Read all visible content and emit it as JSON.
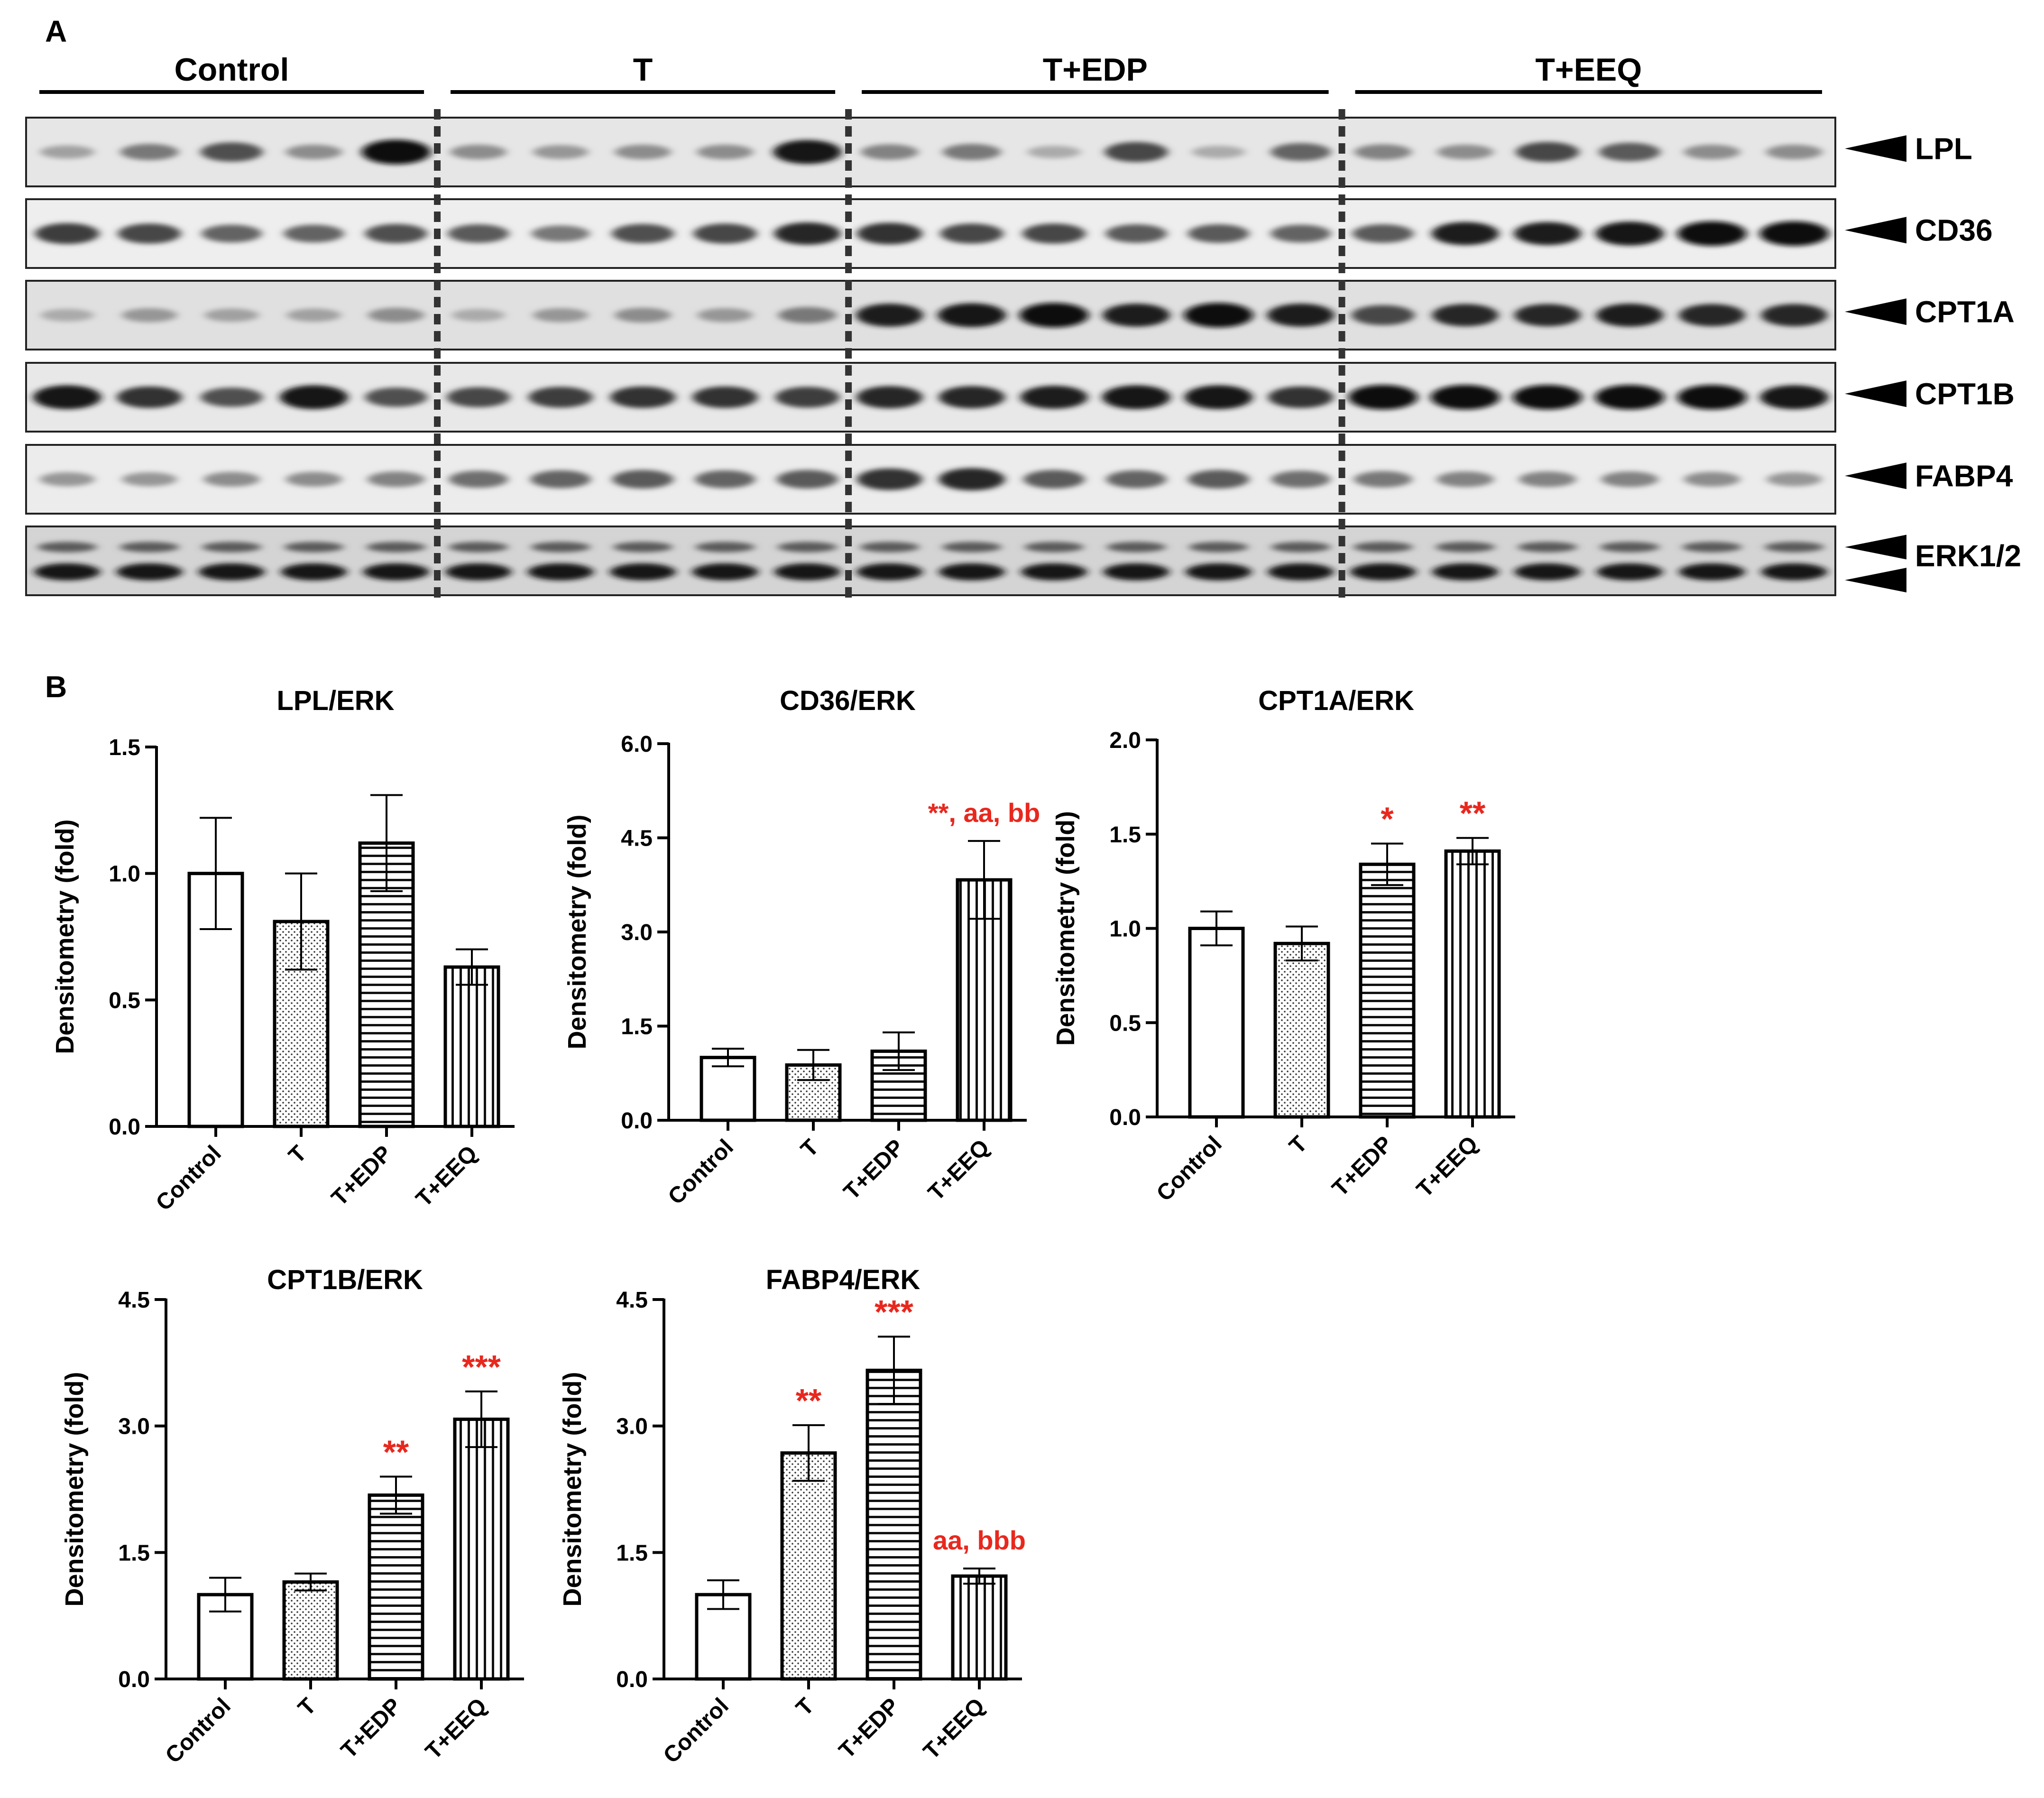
{
  "figure": {
    "panel_a_label": "A",
    "panel_b_label": "B"
  },
  "blot": {
    "groups": [
      {
        "name": "Control",
        "lanes": 5
      },
      {
        "name": "T",
        "lanes": 5
      },
      {
        "name": "T+EDP",
        "lanes": 6
      },
      {
        "name": "T+EEQ",
        "lanes": 6
      }
    ],
    "rows": [
      {
        "label": "LPL",
        "background": "#e6e6e6",
        "intensity": [
          0.25,
          0.45,
          0.65,
          0.35,
          1.0,
          0.35,
          0.3,
          0.35,
          0.35,
          0.95,
          0.4,
          0.45,
          0.2,
          0.7,
          0.2,
          0.55,
          0.4,
          0.35,
          0.7,
          0.6,
          0.35,
          0.35
        ],
        "arrows": 1
      },
      {
        "label": "CD36",
        "background": "#eeeeee",
        "intensity": [
          0.75,
          0.7,
          0.55,
          0.55,
          0.65,
          0.6,
          0.45,
          0.65,
          0.7,
          0.85,
          0.8,
          0.7,
          0.7,
          0.6,
          0.6,
          0.55,
          0.6,
          0.9,
          0.9,
          0.95,
          1.0,
          1.0
        ],
        "arrows": 1
      },
      {
        "label": "CPT1A",
        "background": "#e0e0e0",
        "intensity": [
          0.2,
          0.3,
          0.25,
          0.25,
          0.35,
          0.2,
          0.3,
          0.35,
          0.3,
          0.45,
          0.9,
          0.95,
          1.0,
          0.9,
          1.0,
          0.9,
          0.7,
          0.85,
          0.85,
          0.9,
          0.85,
          0.85
        ],
        "arrows": 1
      },
      {
        "label": "CPT1B",
        "background": "#e8e8e8",
        "intensity": [
          0.95,
          0.8,
          0.65,
          0.95,
          0.65,
          0.7,
          0.75,
          0.8,
          0.8,
          0.75,
          0.85,
          0.85,
          0.9,
          0.95,
          0.95,
          0.8,
          1.0,
          1.0,
          1.0,
          1.0,
          1.0,
          0.95
        ],
        "arrows": 1
      },
      {
        "label": "FABP4",
        "background": "#ececec",
        "intensity": [
          0.3,
          0.3,
          0.35,
          0.35,
          0.4,
          0.5,
          0.55,
          0.6,
          0.55,
          0.6,
          0.8,
          0.85,
          0.6,
          0.55,
          0.6,
          0.5,
          0.45,
          0.4,
          0.4,
          0.4,
          0.35,
          0.3
        ],
        "arrows": 1
      },
      {
        "label": "ERK1/2",
        "background": "#d4d4d4",
        "intensity": [
          0.85,
          0.85,
          0.85,
          0.85,
          0.85,
          0.85,
          0.85,
          0.85,
          0.85,
          0.85,
          0.85,
          0.85,
          0.85,
          0.85,
          0.85,
          0.85,
          0.85,
          0.85,
          0.85,
          0.85,
          0.85,
          0.85
        ],
        "arrows": 2
      }
    ]
  },
  "chart_data": [
    {
      "type": "bar",
      "title": "LPL/ERK",
      "xlabel": "",
      "ylabel": "Densitometry (fold)",
      "categories": [
        "Control",
        "T",
        "T+EDP",
        "T+EEQ"
      ],
      "values": [
        1.0,
        0.81,
        1.12,
        0.63
      ],
      "errors": [
        0.22,
        0.19,
        0.19,
        0.07
      ],
      "ylim": [
        0,
        1.5
      ],
      "yticks": [
        "0.0",
        "0.5",
        "1.0",
        "1.5"
      ],
      "patterns": [
        "white",
        "dots",
        "horizontal",
        "vertical"
      ],
      "annotations": [],
      "annotation_color": "#e8281e"
    },
    {
      "type": "bar",
      "title": "CD36/ERK",
      "xlabel": "",
      "ylabel": "Densitometry (fold)",
      "categories": [
        "Control",
        "T",
        "T+EDP",
        "T+EEQ"
      ],
      "values": [
        1.0,
        0.88,
        1.1,
        3.83
      ],
      "errors": [
        0.14,
        0.24,
        0.3,
        0.62
      ],
      "ylim": [
        0,
        6.0
      ],
      "yticks": [
        "0.0",
        "1.5",
        "3.0",
        "4.5",
        "6.0"
      ],
      "patterns": [
        "white",
        "dots",
        "horizontal",
        "vertical"
      ],
      "annotations": [
        {
          "category": "T+EEQ",
          "text": "**, aa, bb"
        }
      ],
      "annotation_color": "#e8281e"
    },
    {
      "type": "bar",
      "title": "CPT1A/ERK",
      "xlabel": "",
      "ylabel": "Densitometry (fold)",
      "categories": [
        "Control",
        "T",
        "T+EDP",
        "T+EEQ"
      ],
      "values": [
        1.0,
        0.92,
        1.34,
        1.41
      ],
      "errors": [
        0.09,
        0.09,
        0.11,
        0.07
      ],
      "ylim": [
        0,
        2.0
      ],
      "yticks": [
        "0.0",
        "0.5",
        "1.0",
        "1.5",
        "2.0"
      ],
      "patterns": [
        "white",
        "dots",
        "horizontal",
        "vertical"
      ],
      "annotations": [
        {
          "category": "T+EDP",
          "text": "*"
        },
        {
          "category": "T+EEQ",
          "text": "**"
        }
      ],
      "annotation_color": "#e8281e"
    },
    {
      "type": "bar",
      "title": "CPT1B/ERK",
      "xlabel": "",
      "ylabel": "Densitometry (fold)",
      "categories": [
        "Control",
        "T",
        "T+EDP",
        "T+EEQ"
      ],
      "values": [
        1.0,
        1.15,
        2.18,
        3.08
      ],
      "errors": [
        0.2,
        0.1,
        0.22,
        0.33
      ],
      "ylim": [
        0,
        4.5
      ],
      "yticks": [
        "0.0",
        "1.5",
        "3.0",
        "4.5"
      ],
      "patterns": [
        "white",
        "dots",
        "horizontal",
        "vertical"
      ],
      "annotations": [
        {
          "category": "T+EDP",
          "text": "**"
        },
        {
          "category": "T+EEQ",
          "text": "***"
        }
      ],
      "annotation_color": "#e8281e"
    },
    {
      "type": "bar",
      "title": "FABP4/ERK",
      "xlabel": "",
      "ylabel": "Densitometry (fold)",
      "categories": [
        "Control",
        "T",
        "T+EDP",
        "T+EEQ"
      ],
      "values": [
        1.0,
        2.68,
        3.66,
        1.22
      ],
      "errors": [
        0.17,
        0.33,
        0.4,
        0.09
      ],
      "ylim": [
        0,
        4.5
      ],
      "yticks": [
        "0.0",
        "1.5",
        "3.0",
        "4.5"
      ],
      "patterns": [
        "white",
        "dots",
        "horizontal",
        "vertical"
      ],
      "annotations": [
        {
          "category": "T",
          "text": "**"
        },
        {
          "category": "T+EDP",
          "text": "***"
        },
        {
          "category": "T+EEQ",
          "text": "aa, bbb"
        }
      ],
      "annotation_color": "#e8281e"
    }
  ]
}
